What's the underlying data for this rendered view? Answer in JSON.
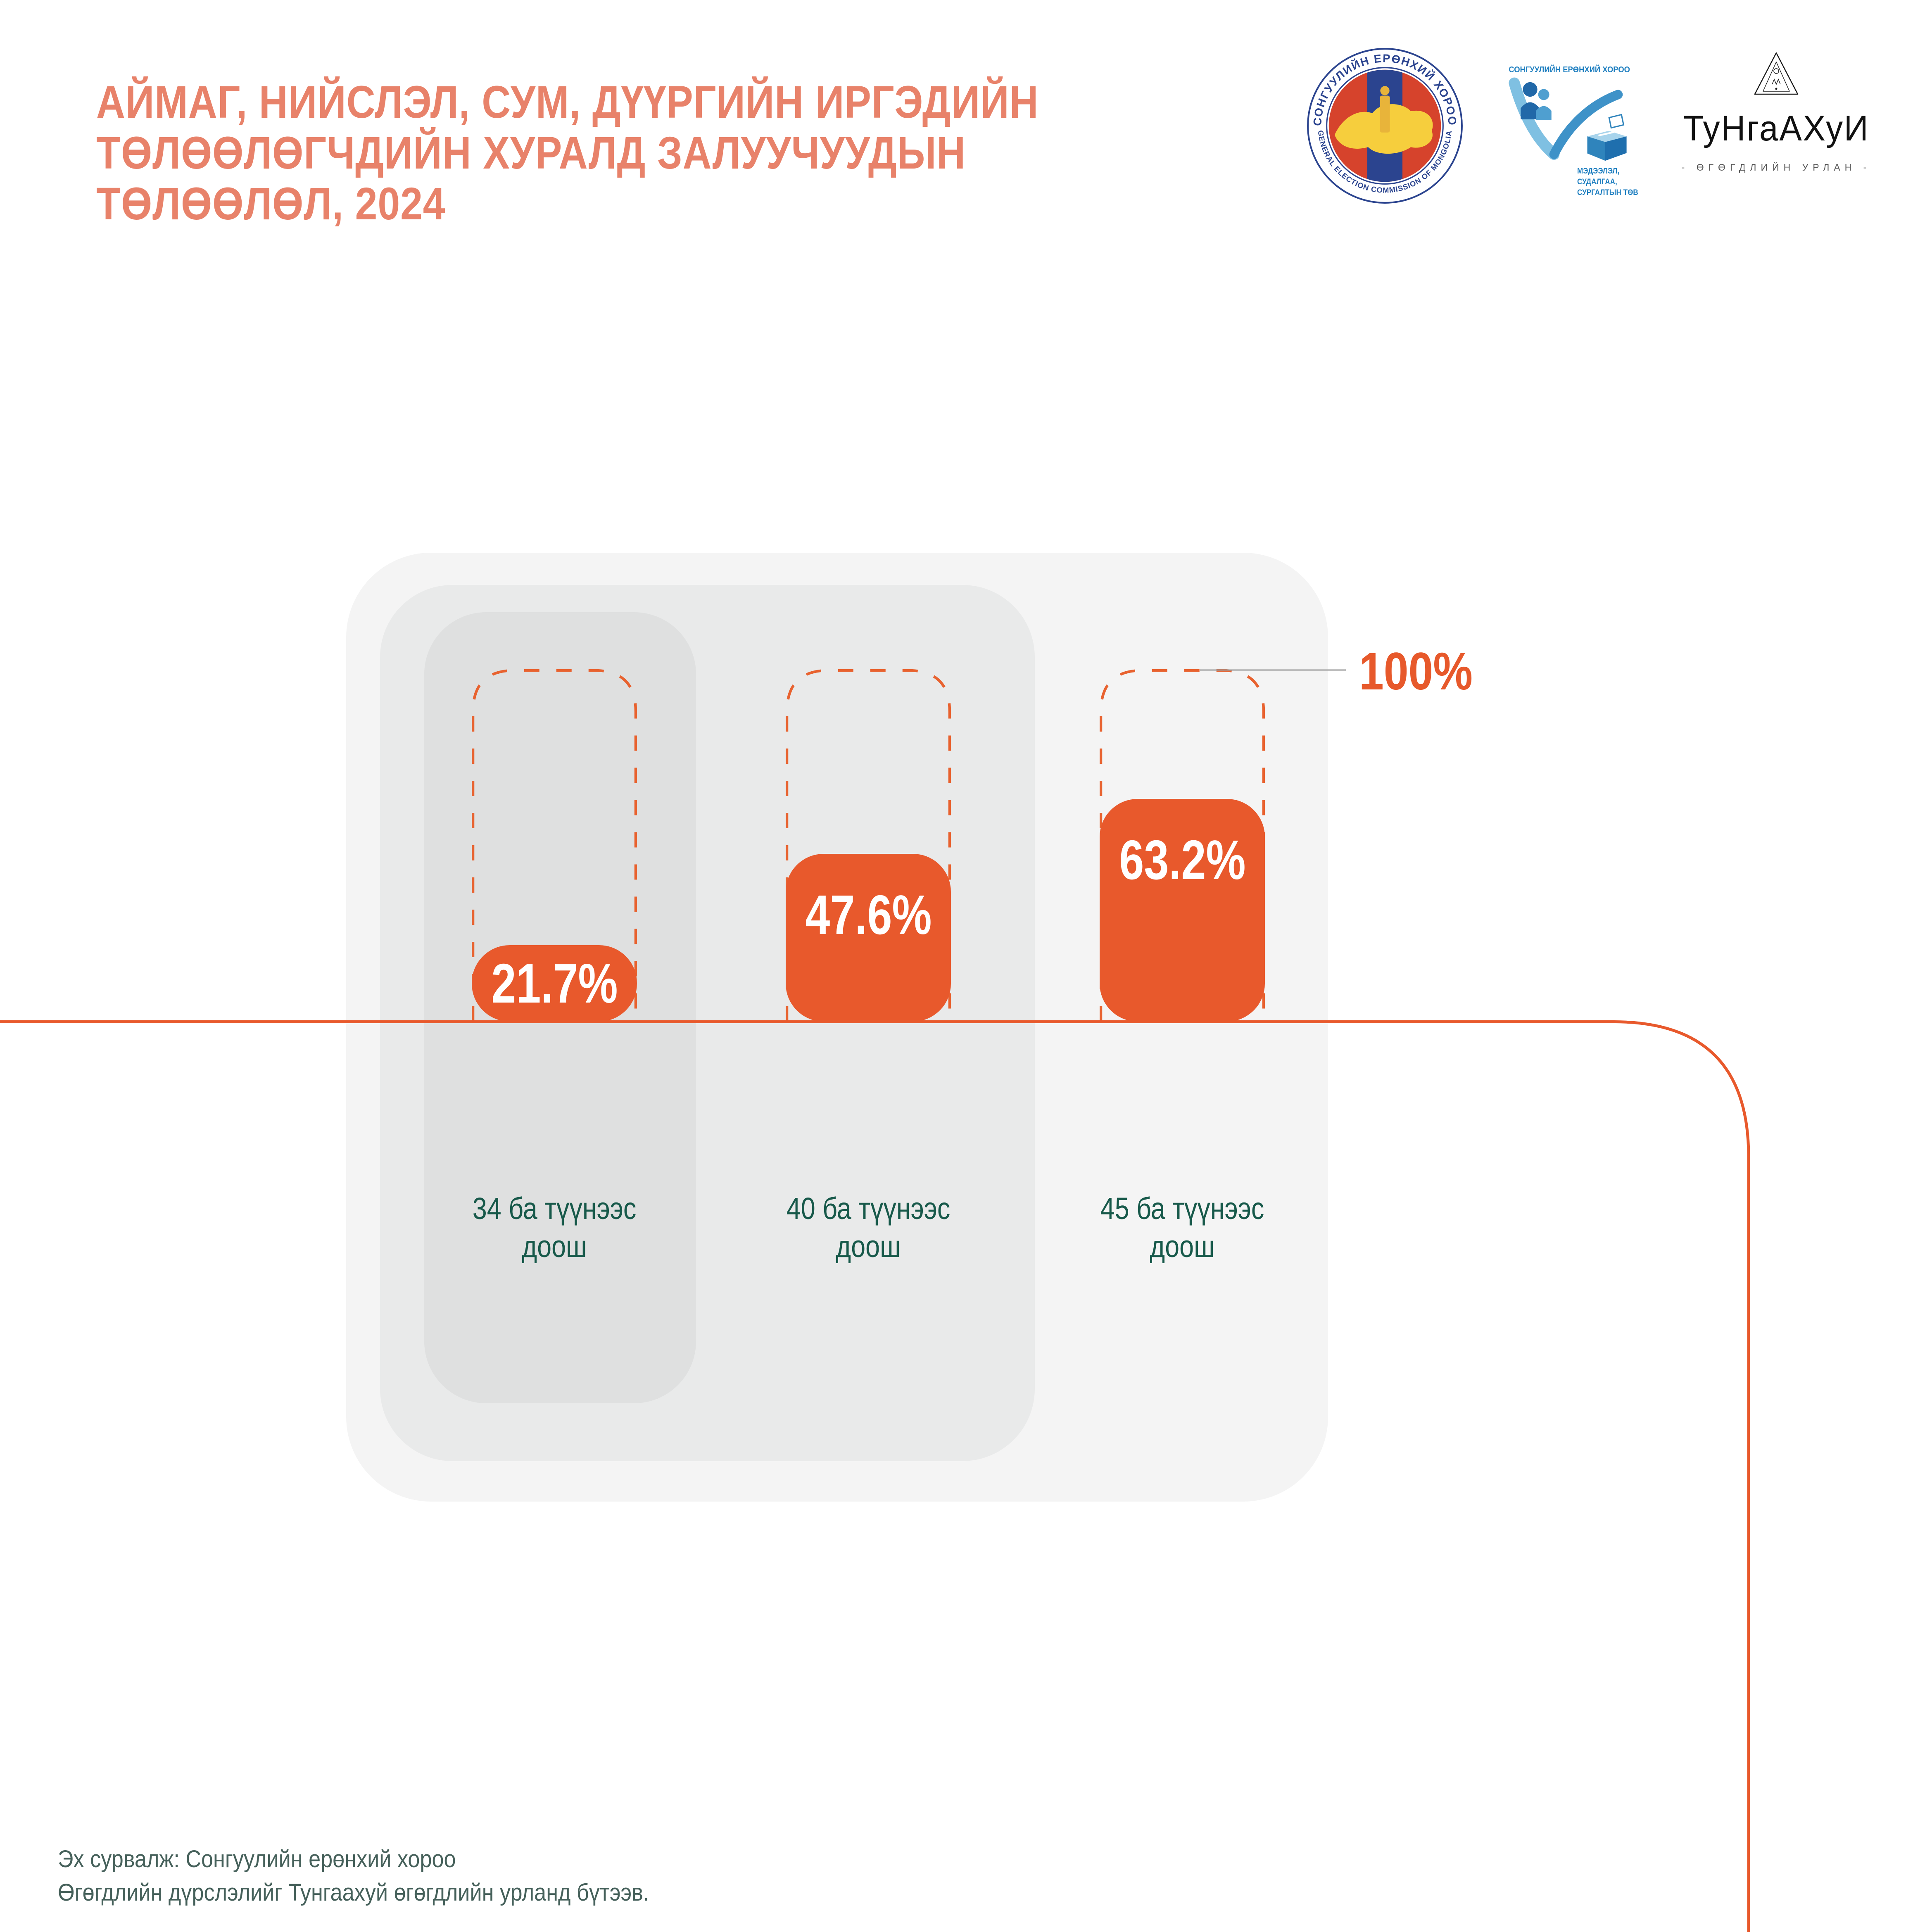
{
  "title": {
    "line1": "АЙМАГ, НИЙСЛЭЛ, СУМ, ДҮҮРГИЙН ИРГЭДИЙН",
    "line2": "ТӨЛӨӨЛӨГЧДИЙН ХУРАЛД ЗАЛУУЧУУДЫН",
    "line3": "ТӨЛӨӨЛӨЛ, 2024"
  },
  "logos": {
    "gec_seal": {
      "arc_top": "СОНГУУЛИЙН ЕРӨНХИЙ ХОРОО",
      "arc_bottom": "GENERAL ELECTION COMMISSION OF MONGOLIA"
    },
    "center": {
      "title": "СОНГУУЛИЙН ЕРӨНХИЙ ХОРОО",
      "sub_line1": "МЭДЭЭЛЭЛ,",
      "sub_line2": "СУДАЛГАА,",
      "sub_line3": "СУРГАЛТЫН ТӨВ"
    },
    "tungaakhui": {
      "wordmark": "ТуНгаАХуИ",
      "tagline": "- ӨГӨГДЛИЙН УРЛАН -"
    }
  },
  "chart": {
    "max_label": "100%",
    "columns": [
      {
        "value": 21.7,
        "value_label": "21.7%",
        "label_line1": "34 ба түүнээс",
        "label_line2": "доош"
      },
      {
        "value": 47.6,
        "value_label": "47.6%",
        "label_line1": "40 ба түүнээс",
        "label_line2": "доош"
      },
      {
        "value": 63.2,
        "value_label": "63.2%",
        "label_line1": "45 ба түүнээс",
        "label_line2": "доош"
      }
    ]
  },
  "source": {
    "line1": "Эх сурвалж: Сонгуулийн ерөнхий хороо",
    "line2": "Өгөгдлийн дүрслэлийг Тунгаахуй өгөгдлийн урланд бүтээв."
  },
  "colors": {
    "title": "#E8826A",
    "bar": "#E8592C",
    "dashed_outline": "#E8622F",
    "baseline": "#E8592C",
    "category_label": "#17594A",
    "source_text": "#45605A",
    "card_outer": "#F4F4F4",
    "card_middle": "#E9EAEA",
    "card_inner": "#DFE0E0",
    "connector": "#9B9B9B"
  },
  "chart_data": {
    "type": "bar",
    "title": "АЙМАГ, НИЙСЛЭЛ, СУМ, ДҮҮРГИЙН ИРГЭДИЙН ТӨЛӨӨЛӨГЧДИЙН ХУРАЛД ЗАЛУУЧУУДЫН ТӨЛӨӨЛӨЛ, 2024",
    "categories": [
      "34 ба түүнээс доош",
      "40 ба түүнээс доош",
      "45 ба түүнээс доош"
    ],
    "values": [
      21.7,
      47.6,
      63.2
    ],
    "value_labels": [
      "21.7%",
      "47.6%",
      "63.2%"
    ],
    "unit": "percent",
    "ylim": [
      0,
      100
    ],
    "reference_line_label": "100%",
    "grid": false,
    "legend": false,
    "xlabel": "",
    "ylabel": ""
  }
}
